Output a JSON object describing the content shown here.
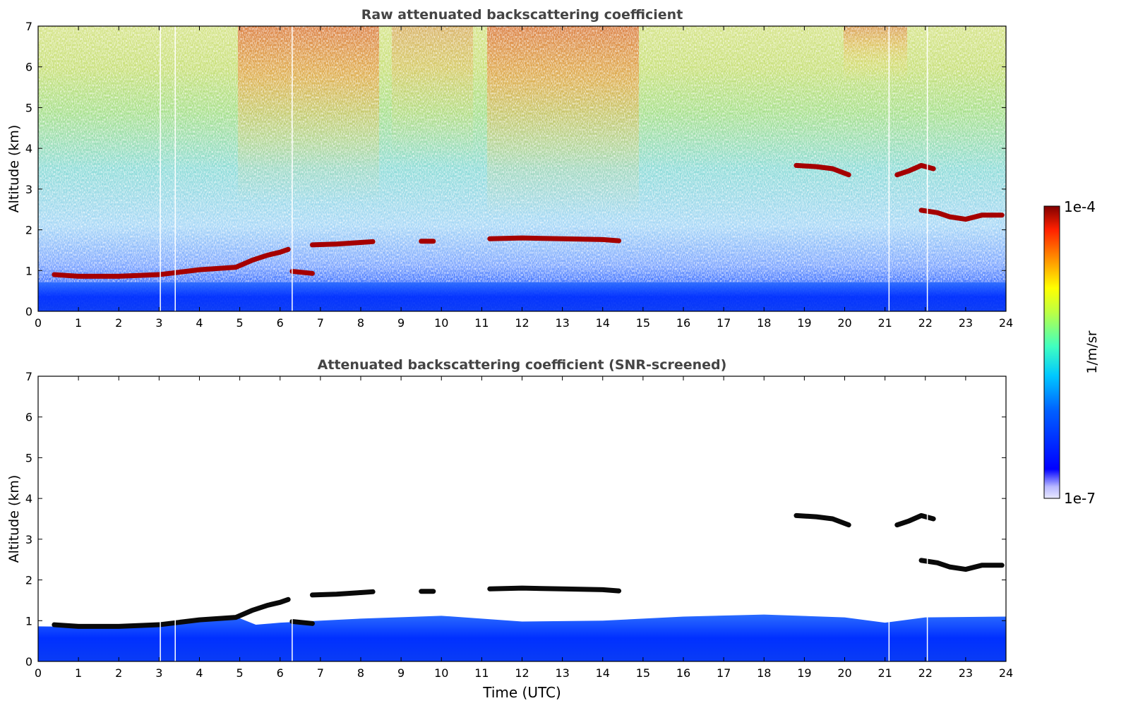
{
  "chart_data": [
    {
      "type": "heatmap",
      "title": "Raw attenuated backscattering coefficient",
      "xlabel": "",
      "ylabel": "Altitude (km)",
      "xlim": [
        0,
        24
      ],
      "ylim": [
        0,
        7
      ],
      "x_ticks": [
        "0",
        "1",
        "2",
        "3",
        "4",
        "5",
        "6",
        "7",
        "8",
        "9",
        "10",
        "11",
        "12",
        "13",
        "14",
        "15",
        "16",
        "17",
        "18",
        "19",
        "20",
        "21",
        "22",
        "23",
        "24"
      ],
      "y_ticks": [
        "0",
        "1",
        "2",
        "3",
        "4",
        "5",
        "6",
        "7"
      ],
      "layers": [
        {
          "x": [
            0.4,
            1.0,
            2.0,
            3.0,
            4.0,
            4.9,
            5.3,
            5.7,
            6.0,
            6.2
          ],
          "y": [
            0.9,
            0.86,
            0.86,
            0.9,
            1.02,
            1.08,
            1.25,
            1.38,
            1.45,
            1.52
          ]
        },
        {
          "x": [
            6.8,
            7.4,
            8.0,
            8.3
          ],
          "y": [
            1.63,
            1.65,
            1.69,
            1.71
          ]
        },
        {
          "x": [
            9.5,
            9.8
          ],
          "y": [
            1.72,
            1.72
          ]
        },
        {
          "x": [
            11.2,
            12.0,
            13.0,
            14.0,
            14.4
          ],
          "y": [
            1.78,
            1.8,
            1.78,
            1.76,
            1.73
          ]
        },
        {
          "x": [
            18.8,
            19.3,
            19.7,
            20.1
          ],
          "y": [
            3.58,
            3.55,
            3.5,
            3.35
          ]
        },
        {
          "x": [
            21.3,
            21.6,
            21.9,
            22.2
          ],
          "y": [
            3.35,
            3.45,
            3.58,
            3.5
          ]
        },
        {
          "x": [
            21.9,
            22.3,
            22.6,
            23.0,
            23.4,
            23.9
          ],
          "y": [
            2.48,
            2.42,
            2.32,
            2.26,
            2.36,
            2.36
          ]
        },
        {
          "x": [
            6.3,
            6.8
          ],
          "y": [
            0.98,
            0.93
          ]
        }
      ],
      "gaps_hours": [
        3.03,
        3.4,
        6.3,
        21.1,
        22.05
      ]
    },
    {
      "type": "heatmap",
      "title": "Attenuated backscattering coefficient (SNR-screened)",
      "xlabel": "Time (UTC)",
      "ylabel": "Altitude (km)",
      "xlim": [
        0,
        24
      ],
      "ylim": [
        0,
        7
      ],
      "x_ticks": [
        "0",
        "1",
        "2",
        "3",
        "4",
        "5",
        "6",
        "7",
        "8",
        "9",
        "10",
        "11",
        "12",
        "13",
        "14",
        "15",
        "16",
        "17",
        "18",
        "19",
        "20",
        "21",
        "22",
        "23",
        "24"
      ],
      "y_ticks": [
        "0",
        "1",
        "2",
        "3",
        "4",
        "5",
        "6",
        "7"
      ],
      "boundary_layer_top_km": [
        {
          "x": 0,
          "y": 0.86
        },
        {
          "x": 2,
          "y": 0.84
        },
        {
          "x": 4,
          "y": 0.98
        },
        {
          "x": 5,
          "y": 1.06
        },
        {
          "x": 5.4,
          "y": 0.9
        },
        {
          "x": 6,
          "y": 0.95
        },
        {
          "x": 8,
          "y": 1.05
        },
        {
          "x": 10,
          "y": 1.12
        },
        {
          "x": 12,
          "y": 0.98
        },
        {
          "x": 14,
          "y": 1.0
        },
        {
          "x": 16,
          "y": 1.1
        },
        {
          "x": 18,
          "y": 1.15
        },
        {
          "x": 20,
          "y": 1.08
        },
        {
          "x": 21,
          "y": 0.95
        },
        {
          "x": 22,
          "y": 1.08
        },
        {
          "x": 24,
          "y": 1.1
        }
      ]
    }
  ],
  "colorbar": {
    "label": "1/m/sr",
    "max_label": "1e-4",
    "min_label": "1e-7",
    "scale": "log"
  },
  "colors": {
    "frame": "#000000",
    "title_text": "#444444",
    "gap_line": "#ffffff",
    "layer_raw": "#a50000",
    "layer_screened": "#0a0a0a"
  }
}
